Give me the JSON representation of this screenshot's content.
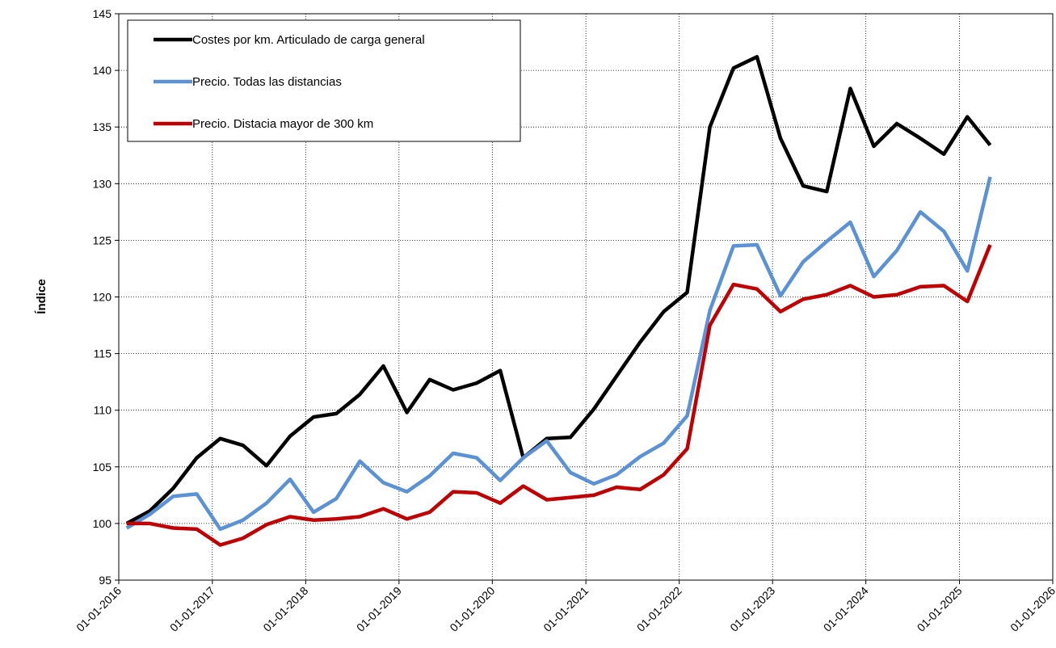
{
  "chart_data": {
    "type": "line",
    "ylabel": "Índice",
    "x": [
      "2016-02-01",
      "2016-05-01",
      "2016-08-01",
      "2016-11-01",
      "2017-02-01",
      "2017-05-01",
      "2017-08-01",
      "2017-11-01",
      "2018-02-01",
      "2018-05-01",
      "2018-08-01",
      "2018-11-01",
      "2019-02-01",
      "2019-05-01",
      "2019-08-01",
      "2019-11-01",
      "2020-02-01",
      "2020-05-01",
      "2020-08-01",
      "2020-11-01",
      "2021-02-01",
      "2021-05-01",
      "2021-08-01",
      "2021-11-01",
      "2022-02-01",
      "2022-05-01",
      "2022-08-01",
      "2022-11-01",
      "2023-02-01",
      "2023-05-01",
      "2023-08-01",
      "2023-11-01",
      "2024-02-01",
      "2024-05-01",
      "2024-08-01",
      "2024-11-01",
      "2025-02-01",
      "2025-05-01"
    ],
    "series": [
      {
        "name": "Costes por km. Articulado de carga general",
        "color": "#000000",
        "values": [
          100.0,
          101.1,
          103.1,
          105.8,
          107.5,
          106.9,
          105.1,
          107.7,
          109.4,
          109.7,
          111.4,
          113.9,
          109.8,
          112.7,
          111.8,
          112.4,
          113.5,
          105.8,
          107.5,
          107.6,
          110.1,
          113.0,
          116.0,
          118.7,
          120.4,
          135.0,
          140.2,
          141.2,
          134.0,
          129.8,
          129.3,
          138.4,
          133.3,
          135.3,
          134.0,
          132.6,
          135.9,
          133.4
        ]
      },
      {
        "name": "Precio. Todas las distancias",
        "color": "#5b92d6",
        "values": [
          99.6,
          100.8,
          102.4,
          102.6,
          99.5,
          100.3,
          101.8,
          103.9,
          101.0,
          102.2,
          105.5,
          103.6,
          102.8,
          104.2,
          106.2,
          105.8,
          103.8,
          105.8,
          107.3,
          104.5,
          103.5,
          104.3,
          105.9,
          107.1,
          109.5,
          118.8,
          124.5,
          124.6,
          120.1,
          123.1,
          124.9,
          126.6,
          121.8,
          124.1,
          127.5,
          125.8,
          122.3,
          130.6
        ]
      },
      {
        "name": "Precio. Distacia mayor de 300 km",
        "color": "#c00000",
        "values": [
          100.0,
          100.0,
          99.6,
          99.5,
          98.1,
          98.7,
          99.9,
          100.6,
          100.3,
          100.4,
          100.6,
          101.3,
          100.4,
          101.0,
          102.8,
          102.7,
          101.8,
          103.3,
          102.1,
          102.3,
          102.5,
          103.2,
          103.0,
          104.3,
          106.6,
          117.5,
          121.1,
          120.7,
          118.7,
          119.8,
          120.2,
          121.0,
          120.0,
          120.2,
          120.9,
          121.0,
          119.6,
          124.6
        ]
      }
    ],
    "xlim": [
      "2016-01-01",
      "2026-01-01"
    ],
    "xticks": [
      {
        "value": "2016-01-01",
        "label": "01-01-2016"
      },
      {
        "value": "2017-01-01",
        "label": "01-01-2017"
      },
      {
        "value": "2018-01-01",
        "label": "01-01-2018"
      },
      {
        "value": "2019-01-01",
        "label": "01-01-2019"
      },
      {
        "value": "2020-01-01",
        "label": "01-01-2020"
      },
      {
        "value": "2021-01-01",
        "label": "01-01-2021"
      },
      {
        "value": "2022-01-01",
        "label": "01-01-2022"
      },
      {
        "value": "2023-01-01",
        "label": "01-01-2023"
      },
      {
        "value": "2024-01-01",
        "label": "01-01-2024"
      },
      {
        "value": "2025-01-01",
        "label": "01-01-2025"
      },
      {
        "value": "2026-01-01",
        "label": "01-01-2026"
      }
    ],
    "ylim": [
      95,
      145
    ],
    "yticks": [
      95,
      100,
      105,
      110,
      115,
      120,
      125,
      130,
      135,
      140,
      145
    ],
    "grid": true,
    "legend": "upper left"
  }
}
